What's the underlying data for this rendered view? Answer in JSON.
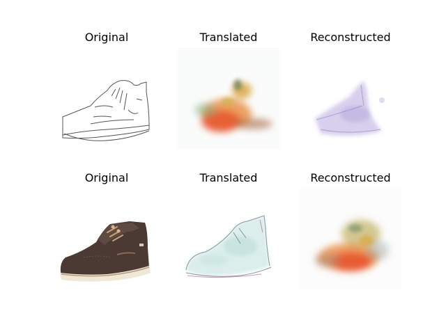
{
  "figure": {
    "rows": [
      {
        "titles": [
          "Original",
          "Translated",
          "Reconstructed"
        ]
      },
      {
        "titles": [
          "Original",
          "Translated",
          "Reconstructed"
        ]
      }
    ],
    "panels": [
      {
        "icon": "shoe-sketch-icon"
      },
      {
        "icon": "blurry-orange-shoe-icon"
      },
      {
        "icon": "faint-lavender-shoe-icon"
      },
      {
        "icon": "brown-boat-shoe-photo-icon"
      },
      {
        "icon": "pale-cyan-shoe-sketch-icon"
      },
      {
        "icon": "blurry-orange-shoe-icon"
      }
    ],
    "colors": {
      "sketch_line": "#555555",
      "shoe_brown": "#4a3a33",
      "shoe_sole": "#efe8d6",
      "blur_orange": "#e8542d",
      "blur_yellow": "#d9a640",
      "faint_lavender": "#c9c0e6",
      "pale_cyan": "#d7ecea"
    }
  }
}
